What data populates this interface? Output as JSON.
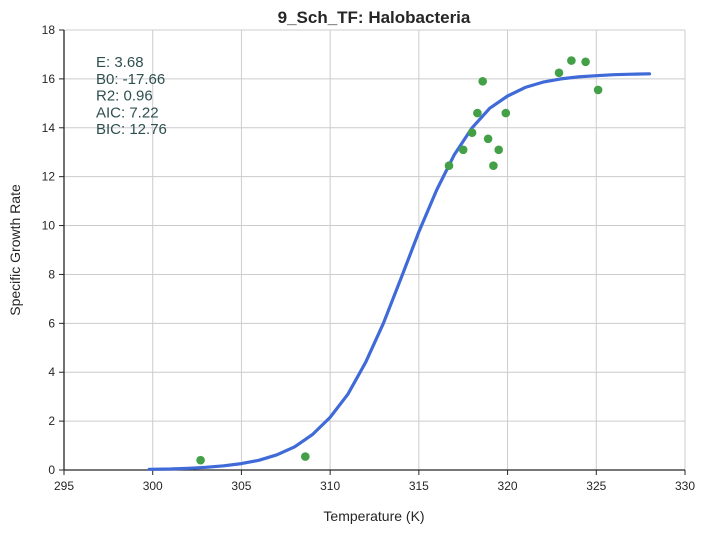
{
  "chart_data": {
    "type": "scatter",
    "title": "9_Sch_TF: Halobacteria",
    "xlabel": "Temperature (K)",
    "ylabel": "Specific Growth Rate",
    "xlim": [
      295,
      330
    ],
    "ylim": [
      0,
      18
    ],
    "xticks": [
      295,
      300,
      305,
      310,
      315,
      320,
      325,
      330
    ],
    "yticks": [
      0,
      2,
      4,
      6,
      8,
      10,
      12,
      14,
      16,
      18
    ],
    "grid": true,
    "stats": [
      "E:  3.68",
      "B0:  -17.66",
      "R2:  0.96",
      "AIC: 7.22",
      "BIC: 12.76"
    ],
    "colors": {
      "points": "#43a047",
      "fit": "#3f6ad8"
    },
    "series": [
      {
        "type": "scatter",
        "x": [
          302.7,
          308.6,
          316.7,
          317.5,
          318.0,
          318.3,
          318.6,
          318.9,
          319.2,
          319.5,
          319.9,
          322.9,
          323.6,
          324.4,
          325.1
        ],
        "y": [
          0.4,
          0.55,
          12.45,
          13.1,
          13.8,
          14.6,
          15.9,
          13.55,
          12.45,
          13.1,
          14.6,
          16.25,
          16.75,
          16.7,
          15.55
        ]
      },
      {
        "type": "line",
        "x": [
          299.8,
          301,
          302,
          303,
          304,
          305,
          306,
          307,
          308,
          309,
          310,
          311,
          312,
          313,
          314,
          315,
          316,
          317,
          318,
          319,
          320,
          321,
          322,
          323,
          324,
          325,
          326,
          327,
          328
        ],
        "y": [
          0.03,
          0.04,
          0.07,
          0.11,
          0.17,
          0.26,
          0.4,
          0.62,
          0.95,
          1.45,
          2.15,
          3.1,
          4.4,
          6.0,
          7.85,
          9.75,
          11.45,
          12.9,
          14.0,
          14.8,
          15.3,
          15.65,
          15.87,
          16.0,
          16.08,
          16.13,
          16.17,
          16.19,
          16.21
        ]
      }
    ]
  }
}
